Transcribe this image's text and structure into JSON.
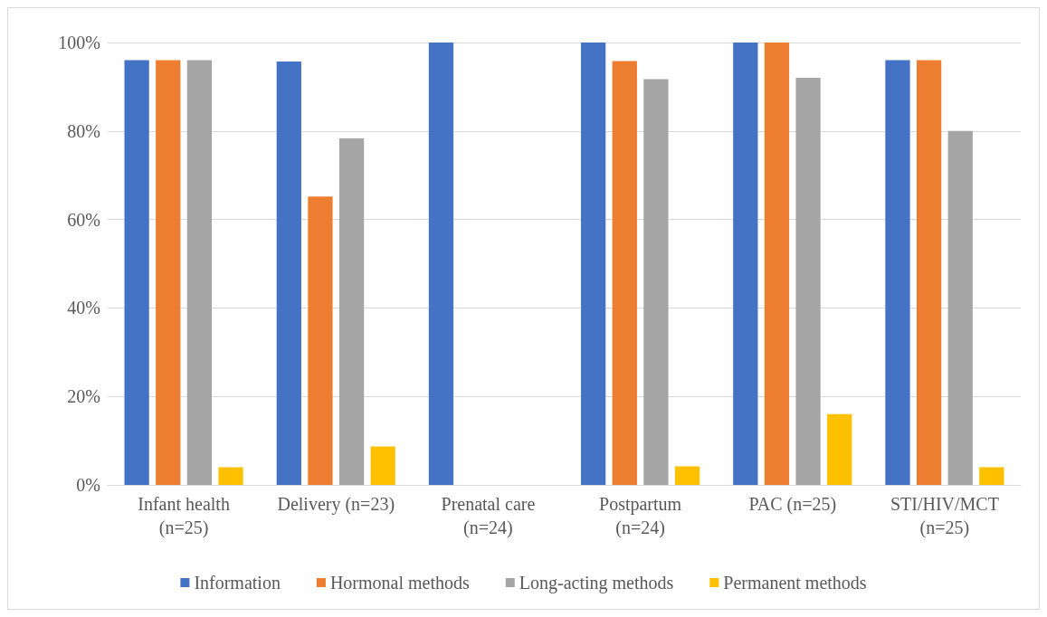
{
  "chart_data": {
    "type": "bar",
    "categories": [
      "Infant health\n(n=25)",
      "Delivery (n=23)",
      "Prenatal care\n(n=24)",
      "Postpartum\n(n=24)",
      "PAC (n=25)",
      "STI/HIV/MCT\n(n=25)"
    ],
    "series": [
      {
        "name": "Information",
        "color": "#4472c4",
        "values": [
          96,
          95.7,
          100,
          100,
          100,
          96
        ]
      },
      {
        "name": "Hormonal methods",
        "color": "#ed7d31",
        "values": [
          96,
          65.2,
          0,
          95.8,
          100,
          96
        ]
      },
      {
        "name": "Long-acting methods",
        "color": "#a5a5a5",
        "values": [
          96,
          78.3,
          0,
          91.7,
          92,
          80
        ]
      },
      {
        "name": "Permanent methods",
        "color": "#ffc000",
        "values": [
          4,
          8.7,
          0,
          4.2,
          16,
          4
        ]
      }
    ],
    "ylim": [
      0,
      100
    ],
    "yticks": [
      {
        "value": 0,
        "label": "0%"
      },
      {
        "value": 20,
        "label": "20%"
      },
      {
        "value": 40,
        "label": "40%"
      },
      {
        "value": 60,
        "label": "60%"
      },
      {
        "value": 80,
        "label": "80%"
      },
      {
        "value": 100,
        "label": "100%"
      }
    ],
    "grid": "y",
    "legend": "bottom"
  }
}
